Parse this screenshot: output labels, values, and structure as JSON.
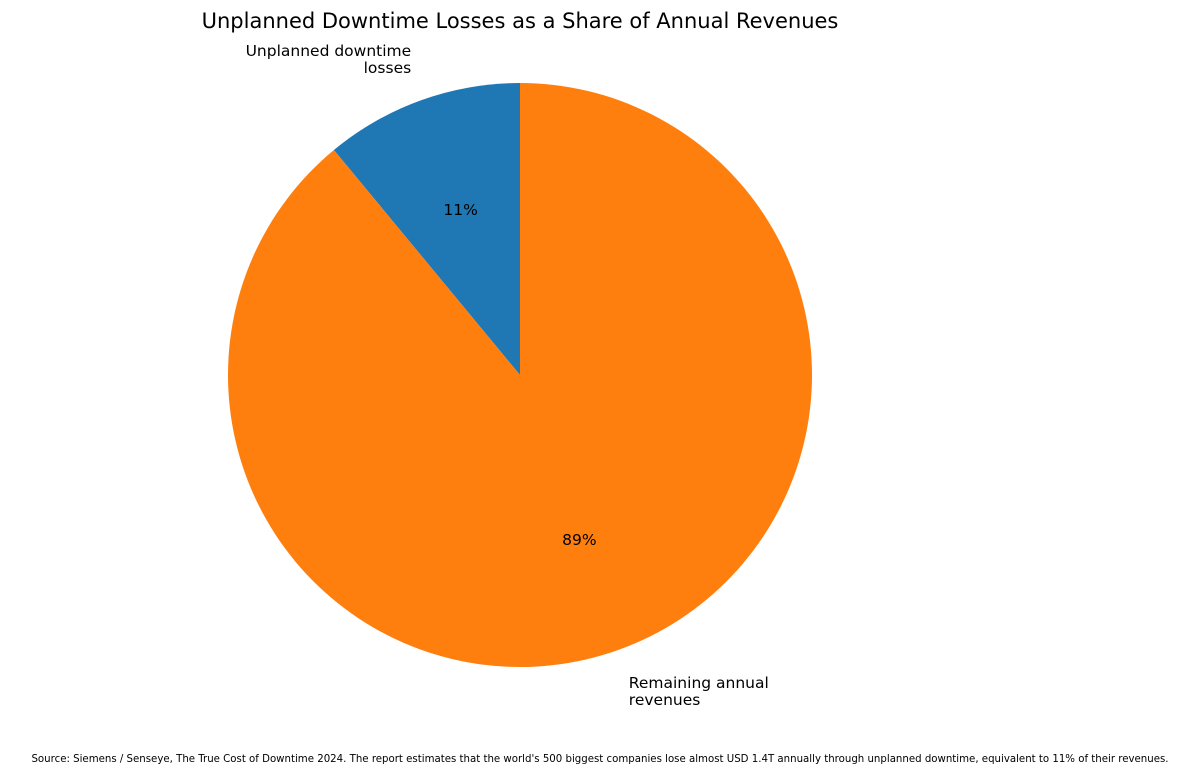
{
  "chart_data": {
    "type": "pie",
    "title": "Unplanned Downtime Losses as a Share of Annual Revenues",
    "slices": [
      {
        "label_lines": [
          "Unplanned downtime",
          "losses"
        ],
        "value": 11,
        "pct_label": "11%",
        "color": "#1f77b4"
      },
      {
        "label_lines": [
          "Remaining annual",
          "revenues"
        ],
        "value": 89,
        "pct_label": "89%",
        "color": "#ff7f0e"
      }
    ],
    "start_angle": "top (90°)",
    "direction": "counterclockwise",
    "source": "Source: Siemens / Senseye, The True Cost of Downtime 2024. The report estimates that the world's 500 biggest companies lose almost USD 1.4T annually through unplanned downtime, equivalent to 11% of their revenues."
  }
}
